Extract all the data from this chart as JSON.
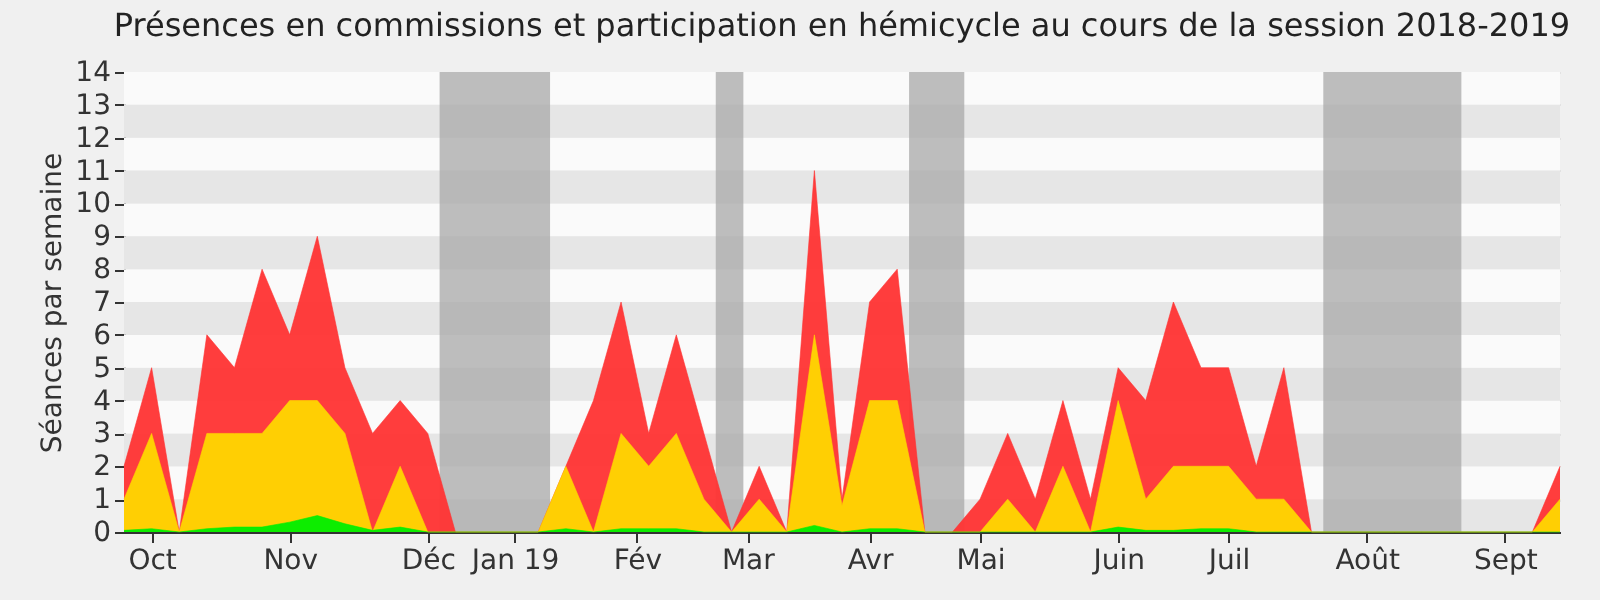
{
  "chart_data": {
    "type": "area",
    "title": "Présences en commissions et participation en hémicycle au cours de la session 2018-2019",
    "ylabel": "Séances par semaine",
    "x": [
      "2018-09-24",
      "2018-10-01",
      "2018-10-08",
      "2018-10-15",
      "2018-10-22",
      "2018-10-29",
      "2018-11-05",
      "2018-11-12",
      "2018-11-19",
      "2018-11-26",
      "2018-12-03",
      "2018-12-10",
      "2018-12-17",
      "2018-12-24",
      "2018-12-31",
      "2019-01-07",
      "2019-01-14",
      "2019-01-21",
      "2019-01-28",
      "2019-02-04",
      "2019-02-11",
      "2019-02-18",
      "2019-02-25",
      "2019-03-04",
      "2019-03-11",
      "2019-03-18",
      "2019-03-25",
      "2019-04-01",
      "2019-04-08",
      "2019-04-15",
      "2019-04-22",
      "2019-04-29",
      "2019-05-06",
      "2019-05-13",
      "2019-05-20",
      "2019-05-27",
      "2019-06-03",
      "2019-06-10",
      "2019-06-17",
      "2019-06-24",
      "2019-07-01",
      "2019-07-08",
      "2019-07-15",
      "2019-07-22",
      "2019-07-29",
      "2019-08-05",
      "2019-08-12",
      "2019-08-19",
      "2019-08-26",
      "2019-09-02",
      "2019-09-09",
      "2019-09-16",
      "2019-09-23"
    ],
    "series": [
      {
        "color": "#ff3333",
        "values": [
          2,
          5,
          0,
          6,
          5,
          8,
          6,
          9,
          5,
          3,
          4,
          3,
          0,
          0,
          0,
          0,
          2,
          4,
          7,
          3,
          6,
          3,
          0,
          2,
          0,
          11,
          1,
          7,
          8,
          0,
          0,
          1,
          3,
          1,
          4,
          1,
          5,
          4,
          7,
          5,
          5,
          2,
          5,
          0,
          0,
          0,
          0,
          0,
          0,
          0,
          0,
          0,
          2
        ]
      },
      {
        "color": "#ffd700",
        "values": [
          1,
          3,
          0,
          3,
          3,
          3,
          4,
          4,
          3,
          0,
          2,
          0,
          0,
          0,
          0,
          0,
          2,
          0,
          3,
          2,
          3,
          1,
          0,
          1,
          0,
          6,
          0.8,
          4,
          4,
          0,
          0,
          0,
          1,
          0,
          2,
          0,
          4,
          1,
          2,
          2,
          2,
          1,
          1,
          0,
          0,
          0,
          0,
          0,
          0,
          0,
          0,
          0,
          1
        ]
      },
      {
        "color": "#00ee00",
        "values": [
          0.05,
          0.1,
          0,
          0.1,
          0.15,
          0.15,
          0.3,
          0.5,
          0.25,
          0.05,
          0.15,
          0,
          0,
          0,
          0,
          0,
          0.1,
          0,
          0.1,
          0.1,
          0.1,
          0,
          0,
          0,
          0,
          0.2,
          0,
          0.1,
          0.1,
          0,
          0,
          0,
          0,
          0,
          0,
          0,
          0.15,
          0.05,
          0.05,
          0.1,
          0.1,
          0,
          0,
          0,
          0,
          0,
          0,
          0,
          0,
          0,
          0,
          0,
          0
        ]
      }
    ],
    "xlim": [
      "2018-09-24",
      "2019-09-23"
    ],
    "xticks": [
      {
        "value": "2018-10-01",
        "label": "Oct"
      },
      {
        "value": "2018-11-05",
        "label": "Nov"
      },
      {
        "value": "2018-12-10",
        "label": "Déc"
      },
      {
        "value": "2019-01-01",
        "label": "Jan 19"
      },
      {
        "value": "2019-02-01",
        "label": "Fév"
      },
      {
        "value": "2019-03-01",
        "label": "Mar"
      },
      {
        "value": "2019-04-01",
        "label": "Avr"
      },
      {
        "value": "2019-04-29",
        "label": "Mai"
      },
      {
        "value": "2019-06-03",
        "label": "Juin"
      },
      {
        "value": "2019-07-01",
        "label": "Juil"
      },
      {
        "value": "2019-08-05",
        "label": "Août"
      },
      {
        "value": "2019-09-09",
        "label": "Sept"
      }
    ],
    "ylim": [
      0,
      14
    ],
    "yticks": [
      0,
      1,
      2,
      3,
      4,
      5,
      6,
      7,
      8,
      9,
      10,
      11,
      12,
      13,
      14
    ],
    "bands": [
      {
        "axis": "x",
        "from": "2018-12-13",
        "to": "2019-01-10",
        "color": "#a8a8a8"
      },
      {
        "axis": "x",
        "from": "2019-02-21",
        "to": "2019-02-28",
        "color": "#a8a8a8"
      },
      {
        "axis": "x",
        "from": "2019-04-11",
        "to": "2019-04-25",
        "color": "#a8a8a8"
      },
      {
        "axis": "x",
        "from": "2019-07-25",
        "to": "2019-08-29",
        "color": "#a8a8a8"
      }
    ],
    "grid": "y"
  }
}
